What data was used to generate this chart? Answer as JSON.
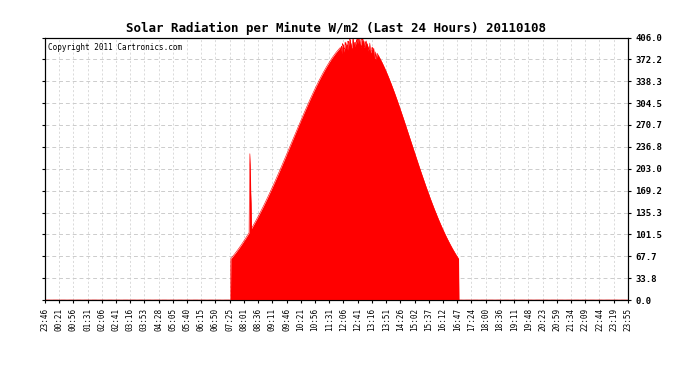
{
  "title": "Solar Radiation per Minute W/m2 (Last 24 Hours) 20110108",
  "copyright": "Copyright 2011 Cartronics.com",
  "background_color": "#ffffff",
  "fill_color": "#ff0000",
  "dashed_line_color": "#ff0000",
  "ytick_labels": [
    "0.0",
    "33.8",
    "67.7",
    "101.5",
    "135.3",
    "169.2",
    "203.0",
    "236.8",
    "270.7",
    "304.5",
    "338.3",
    "372.2",
    "406.0"
  ],
  "ytick_values": [
    0.0,
    33.8,
    67.7,
    101.5,
    135.3,
    169.2,
    203.0,
    236.8,
    270.7,
    304.5,
    338.3,
    372.2,
    406.0
  ],
  "ymax": 406.0,
  "ymin": 0.0,
  "xtick_labels": [
    "23:46",
    "00:21",
    "00:56",
    "01:31",
    "02:06",
    "02:41",
    "03:16",
    "03:53",
    "04:28",
    "05:05",
    "05:40",
    "06:15",
    "06:50",
    "07:25",
    "08:01",
    "08:36",
    "09:11",
    "09:46",
    "10:21",
    "10:56",
    "11:31",
    "12:06",
    "12:41",
    "13:16",
    "13:51",
    "14:26",
    "15:02",
    "15:37",
    "16:12",
    "16:47",
    "17:24",
    "18:00",
    "18:36",
    "19:11",
    "19:48",
    "20:23",
    "20:59",
    "21:34",
    "22:09",
    "22:44",
    "23:19",
    "23:55"
  ],
  "num_points": 1440,
  "sunrise_idx": 459,
  "sunset_idx": 1021,
  "peak_idx": 775,
  "peak_val": 406.0,
  "spike_idx": 505,
  "spike_vals": [
    80,
    120,
    100,
    60,
    40
  ]
}
